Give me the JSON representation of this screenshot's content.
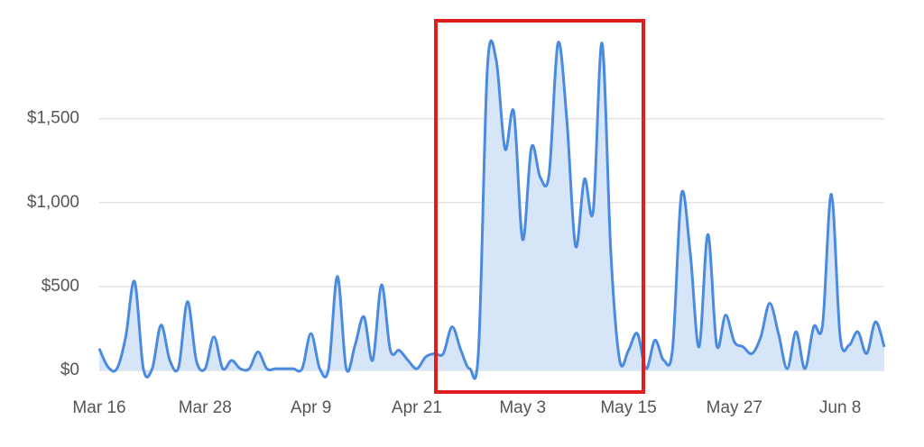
{
  "chart_data": {
    "type": "area",
    "categories": [
      "Mar 16",
      null,
      null,
      null,
      null,
      null,
      null,
      null,
      null,
      null,
      null,
      null,
      "Mar 28",
      null,
      null,
      null,
      null,
      null,
      null,
      null,
      null,
      null,
      null,
      null,
      "Apr 9",
      null,
      null,
      null,
      null,
      null,
      null,
      null,
      null,
      null,
      null,
      null,
      "Apr 21",
      null,
      null,
      null,
      null,
      null,
      null,
      null,
      null,
      null,
      null,
      null,
      "May 3",
      null,
      null,
      null,
      null,
      null,
      null,
      null,
      null,
      null,
      null,
      null,
      "May 15",
      null,
      null,
      null,
      null,
      null,
      null,
      null,
      null,
      null,
      null,
      null,
      "May 27",
      null,
      null,
      null,
      null,
      null,
      null,
      null,
      null,
      null,
      null,
      null,
      "Jun 8",
      null,
      null,
      null,
      null,
      null
    ],
    "values": [
      130,
      20,
      10,
      200,
      530,
      10,
      10,
      270,
      60,
      20,
      410,
      60,
      10,
      200,
      10,
      60,
      10,
      10,
      110,
      10,
      10,
      10,
      10,
      10,
      220,
      10,
      10,
      560,
      10,
      150,
      320,
      60,
      510,
      120,
      120,
      60,
      10,
      80,
      100,
      100,
      260,
      120,
      10,
      120,
      1800,
      1850,
      1320,
      1540,
      780,
      1330,
      1150,
      1170,
      1950,
      1500,
      740,
      1140,
      950,
      1950,
      700,
      60,
      120,
      220,
      10,
      180,
      60,
      130,
      1050,
      700,
      140,
      810,
      150,
      330,
      170,
      140,
      100,
      200,
      400,
      220,
      10,
      230,
      10,
      260,
      270,
      1050,
      200,
      150,
      230,
      100,
      290,
      140
    ],
    "color": "#4a8be0",
    "area_color": "#d7e5f8",
    "ylim": [
      0,
      2100
    ],
    "yticks": [
      {
        "value": 0,
        "label": "$0"
      },
      {
        "value": 500,
        "label": "$500"
      },
      {
        "value": 1000,
        "label": "$1,000"
      },
      {
        "value": 1500,
        "label": "$1,500"
      }
    ],
    "grid": true
  }
}
